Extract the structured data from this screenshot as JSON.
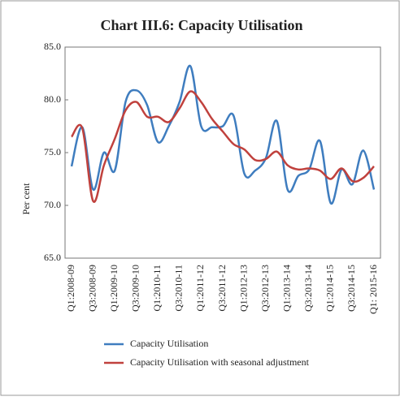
{
  "chart_data": {
    "type": "line",
    "title": "Chart III.6: Capacity Utilisation",
    "y_label": "Per cent",
    "categories": [
      "Q1:2008-09",
      null,
      "Q3:2008-09",
      null,
      "Q1:2009-10",
      null,
      "Q3:2009-10",
      null,
      "Q1:2010-11",
      null,
      "Q3:2010-11",
      null,
      "Q1:2011-12",
      null,
      "Q3:2011-12",
      null,
      "Q1:2012-13",
      null,
      "Q3:2012-13",
      null,
      "Q1:2013-14",
      null,
      "Q3:2013-14",
      null,
      "Q1:2014-15",
      null,
      "Q3:2014-15",
      null,
      "Q1: 2015-16"
    ],
    "series": [
      {
        "name": "Capacity Utilisation",
        "color": "#3f7dbf",
        "values": [
          73.7,
          77.4,
          71.5,
          75.0,
          73.3,
          79.8,
          80.9,
          79.5,
          76.0,
          77.5,
          79.8,
          83.2,
          77.5,
          77.4,
          77.5,
          78.5,
          73.0,
          73.3,
          74.5,
          78.0,
          71.5,
          72.8,
          73.4,
          76.1,
          70.2,
          73.4,
          72.0,
          75.2,
          71.5
        ]
      },
      {
        "name": "Capacity Utilisation with seasonal adjustment",
        "color": "#c0413d",
        "values": [
          76.5,
          77.3,
          70.4,
          73.8,
          76.3,
          79.0,
          79.8,
          78.4,
          78.4,
          77.9,
          79.2,
          80.8,
          79.8,
          78.2,
          77.0,
          75.8,
          75.3,
          74.3,
          74.4,
          75.1,
          73.8,
          73.4,
          73.5,
          73.3,
          72.5,
          73.5,
          72.3,
          72.6,
          73.7
        ]
      }
    ],
    "ylim": [
      65,
      85
    ],
    "yticks": [
      {
        "value": 65,
        "label": "65.0"
      },
      {
        "value": 70,
        "label": "70.0"
      },
      {
        "value": 75,
        "label": "75.0"
      },
      {
        "value": 80,
        "label": "80.0"
      },
      {
        "value": 85,
        "label": "85.0"
      }
    ]
  }
}
